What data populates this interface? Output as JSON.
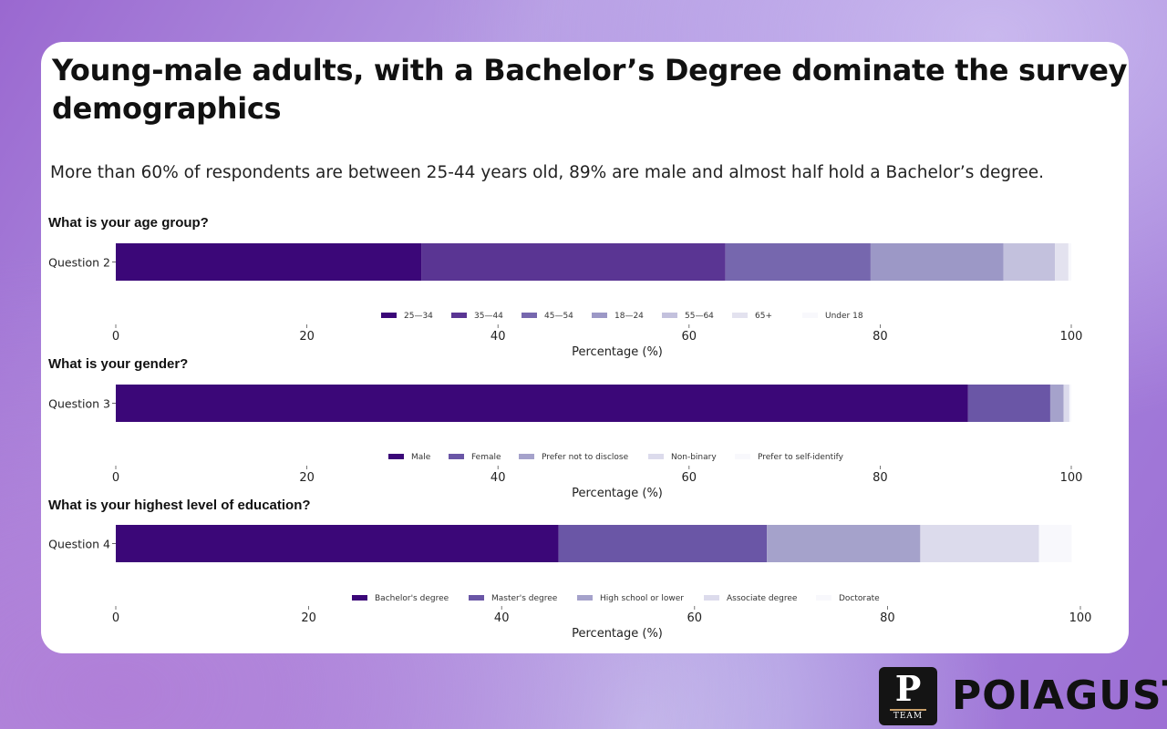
{
  "headline": "Young-male adults, with a Bachelor’s Degree dominate the survey demographics",
  "subtitle": "More than 60% of respondents are between 25-44 years old, 89% are male and almost half hold a Bachelor’s degree.",
  "brand": {
    "logo_letter": "P",
    "logo_text": "TEAM",
    "name": "POIAGUST"
  },
  "chart_data": [
    {
      "type": "bar",
      "orientation": "horizontal",
      "stacked": true,
      "title": "What is your age group?",
      "categories": [
        "Question 2"
      ],
      "xlabel": "Percentage (%)",
      "xticks": [
        "0",
        "20",
        "40",
        "60",
        "80",
        "100"
      ],
      "xlim": [
        0,
        100
      ],
      "legend_position": "bottom",
      "series": [
        {
          "name": "25—34",
          "values": [
            32.0
          ],
          "color": "#3b0778"
        },
        {
          "name": "35—44",
          "values": [
            31.8
          ],
          "color": "#5a3593"
        },
        {
          "name": "45—54",
          "values": [
            15.2
          ],
          "color": "#7667ae"
        },
        {
          "name": "18—24",
          "values": [
            13.9
          ],
          "color": "#9c98c6"
        },
        {
          "name": "55—64",
          "values": [
            5.4
          ],
          "color": "#c3c1dd"
        },
        {
          "name": "65+",
          "values": [
            1.4
          ],
          "color": "#e3e2ef"
        },
        {
          "name": "Under 18",
          "values": [
            0.3
          ],
          "color": "#f8f8fc"
        }
      ]
    },
    {
      "type": "bar",
      "orientation": "horizontal",
      "stacked": true,
      "title": "What is your gender?",
      "categories": [
        "Question 3"
      ],
      "xlabel": "Percentage (%)",
      "xticks": [
        "0",
        "20",
        "40",
        "60",
        "80",
        "100"
      ],
      "xlim": [
        0,
        100
      ],
      "legend_position": "bottom",
      "series": [
        {
          "name": "Male",
          "values": [
            89.2
          ],
          "color": "#3b0778"
        },
        {
          "name": "Female",
          "values": [
            8.6
          ],
          "color": "#6a56a6"
        },
        {
          "name": "Prefer not to disclose",
          "values": [
            1.4
          ],
          "color": "#a5a2cb"
        },
        {
          "name": "Non-binary",
          "values": [
            0.6
          ],
          "color": "#dcdbec"
        },
        {
          "name": "Prefer to self-identify",
          "values": [
            0.2
          ],
          "color": "#f8f8fc"
        }
      ]
    },
    {
      "type": "bar",
      "orientation": "horizontal",
      "stacked": true,
      "title": "What is your highest level of education?",
      "categories": [
        "Question 4"
      ],
      "xlabel": "Percentage (%)",
      "xticks": [
        "0",
        "20",
        "40",
        "60",
        "80",
        "100"
      ],
      "xlim": [
        0,
        100
      ],
      "legend_position": "bottom",
      "series": [
        {
          "name": "Bachelor's degree",
          "values": [
            45.9
          ],
          "color": "#3b0778"
        },
        {
          "name": "Master's degree",
          "values": [
            21.6
          ],
          "color": "#6a56a6"
        },
        {
          "name": "High school or lower",
          "values": [
            15.9
          ],
          "color": "#a5a2cb"
        },
        {
          "name": "Associate degree",
          "values": [
            12.3
          ],
          "color": "#dcdbec"
        },
        {
          "name": "Doctorate",
          "values": [
            3.4
          ],
          "color": "#f8f8fc"
        }
      ]
    }
  ]
}
